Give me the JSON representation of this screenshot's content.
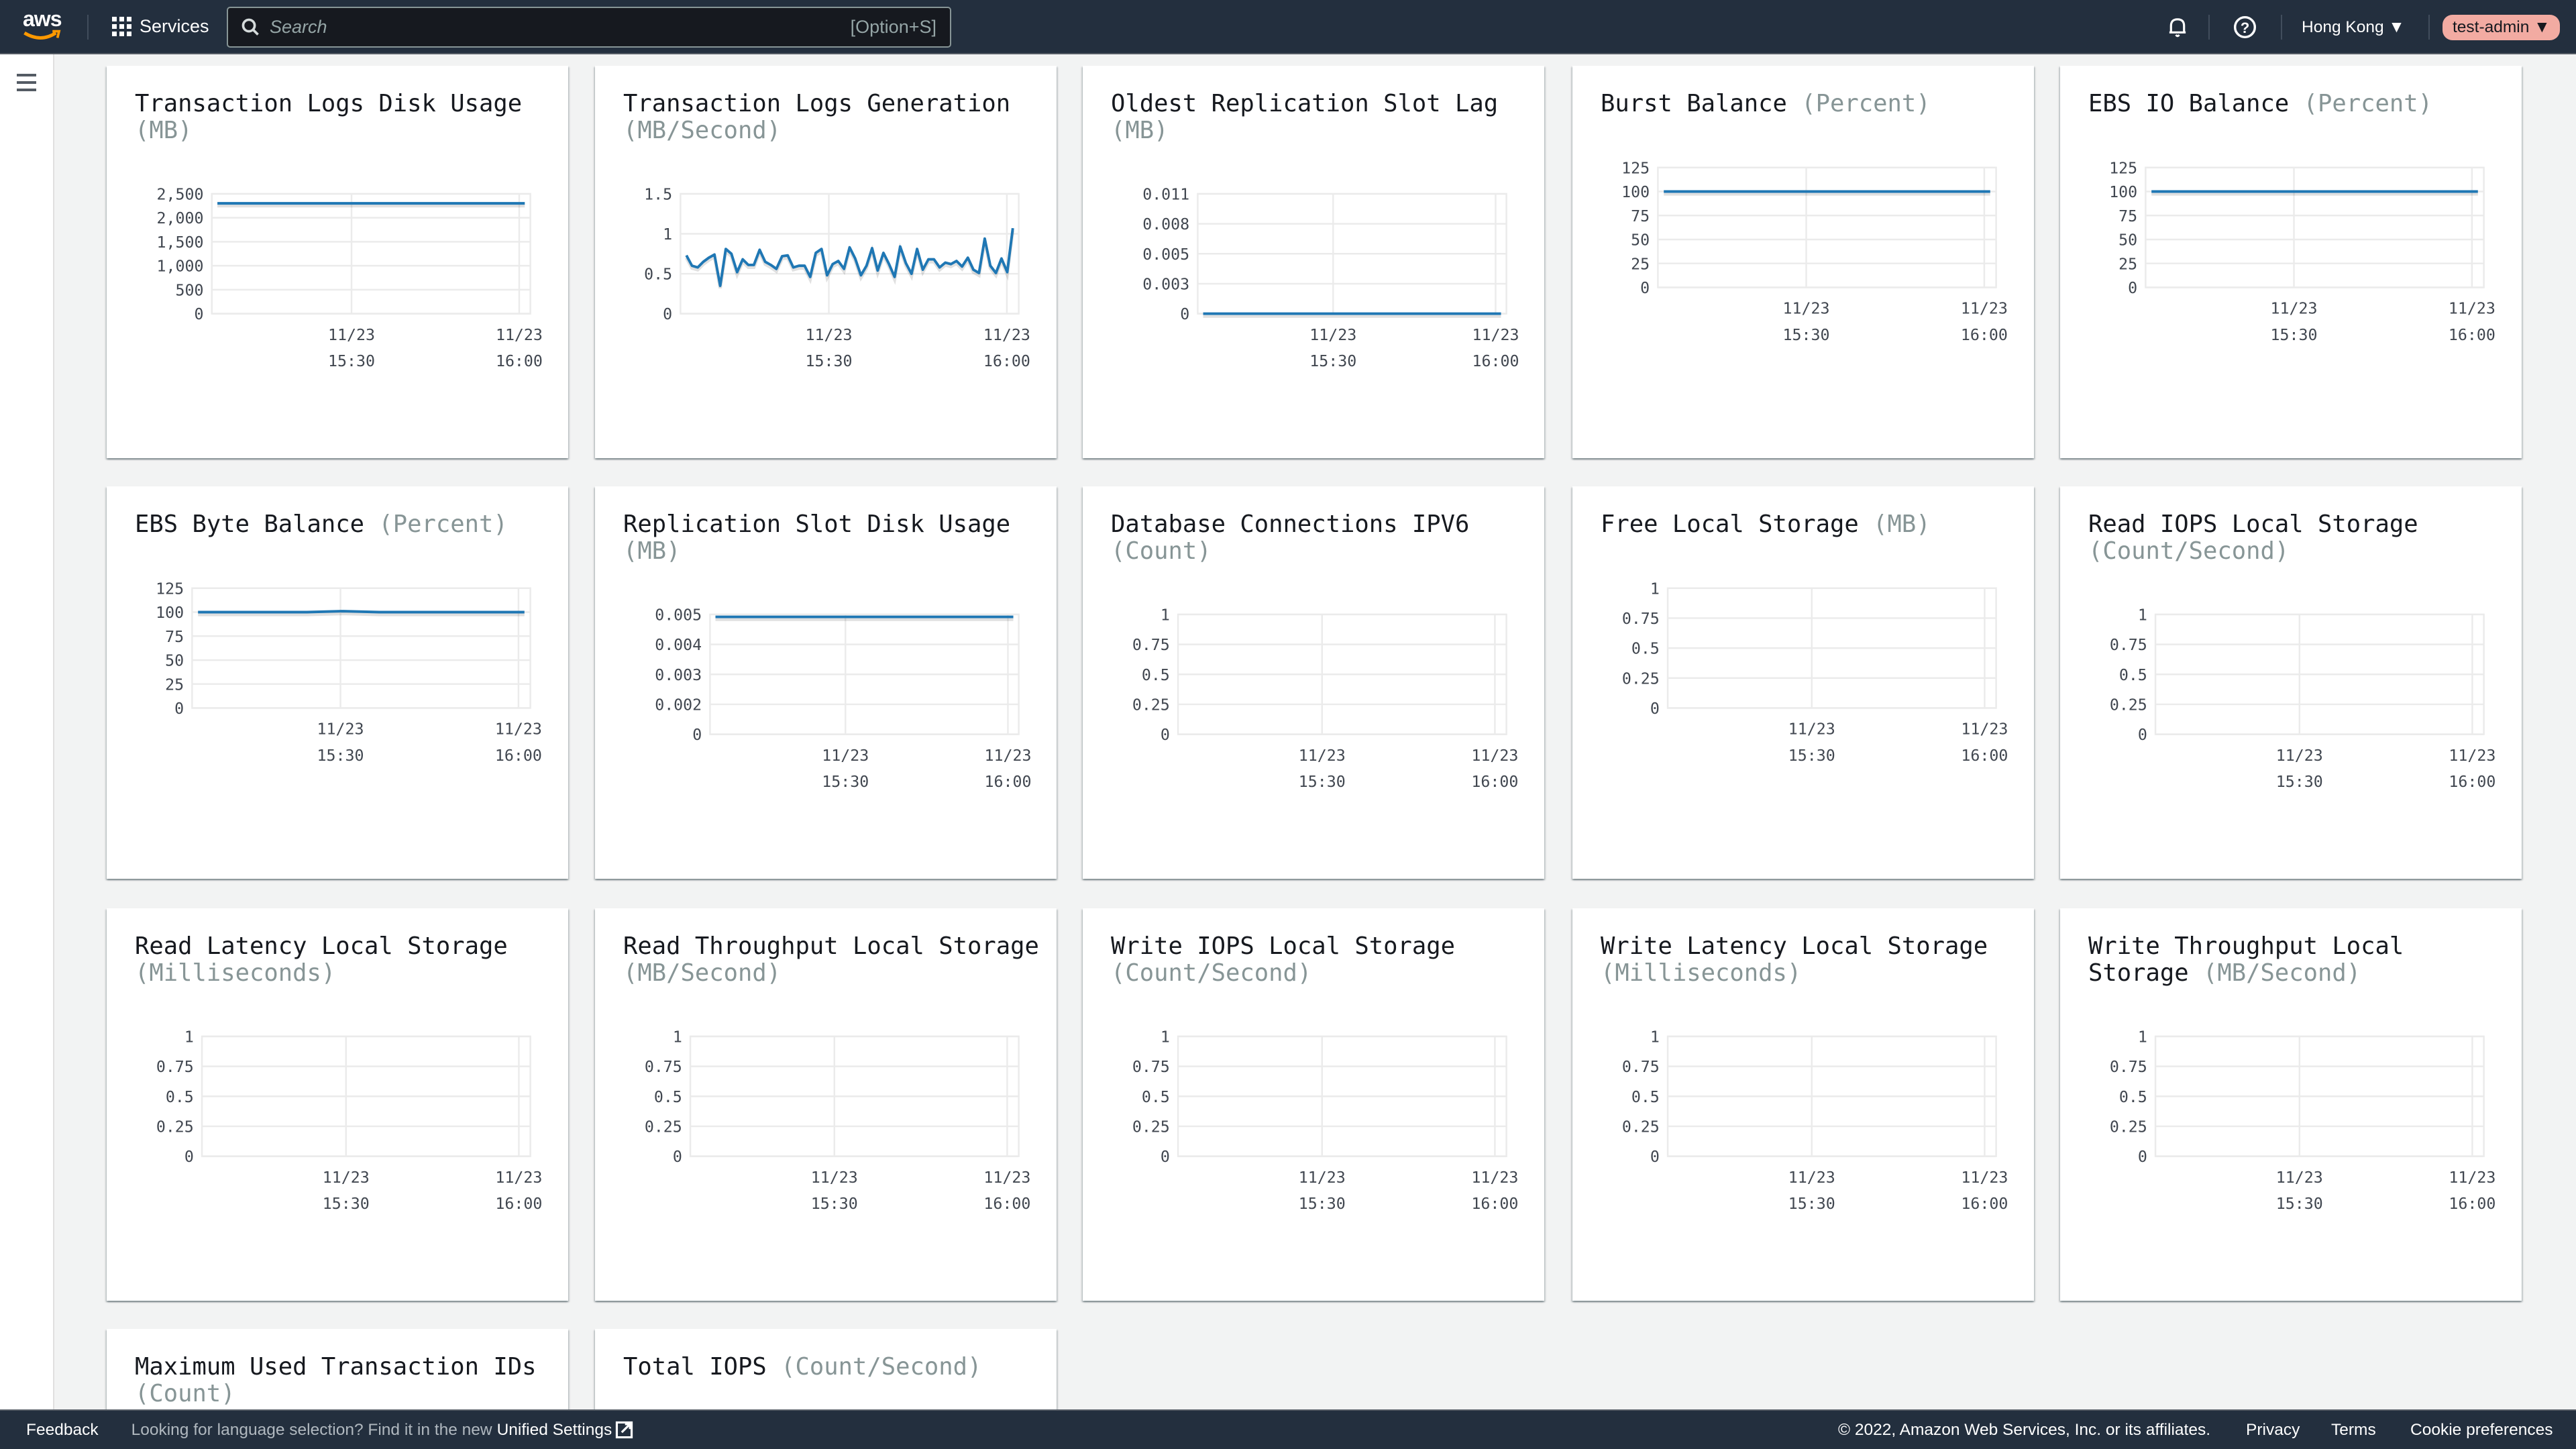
{
  "header": {
    "logo": "aws",
    "services": "Services",
    "search_placeholder": "Search",
    "search_shortcut": "[Option+S]",
    "region": "Hong Kong",
    "user": "test-admin",
    "icons": [
      "bell-icon",
      "help-icon",
      "grid-icon",
      "search-icon",
      "menu-icon"
    ]
  },
  "footer": {
    "feedback": "Feedback",
    "language_text": "Looking for language selection? Find it in the new",
    "unified_settings": "Unified Settings",
    "copyright": "© 2022, Amazon Web Services, Inc. or its affiliates.",
    "privacy": "Privacy",
    "terms": "Terms",
    "cookies": "Cookie preferences"
  },
  "colors": {
    "series": "#1f77b4",
    "header_bg": "#232f3e",
    "user_pill": "#f2aba2"
  },
  "chart_data": [
    {
      "type": "line",
      "title": "Transaction Logs Disk Usage",
      "unit": "(MB)",
      "yticks": [
        "0",
        "500",
        "1,000",
        "1,500",
        "2,000",
        "2,500"
      ],
      "ylim": [
        0,
        2500
      ],
      "xticks": [
        [
          "11/23",
          "15:30"
        ],
        [
          "11/23",
          "16:00"
        ]
      ],
      "xlim": [
        "15:05",
        "16:02"
      ],
      "x_start": "15:06",
      "x_end": "16:01",
      "values": [
        2300,
        2300
      ]
    },
    {
      "type": "line",
      "title": "Transaction Logs Generation",
      "unit": "(MB/Second)",
      "yticks": [
        "0",
        "0.5",
        "1",
        "1.5"
      ],
      "ylim": [
        0,
        1.5
      ],
      "xticks": [
        [
          "11/23",
          "15:30"
        ],
        [
          "11/23",
          "16:00"
        ]
      ],
      "xlim": [
        "15:05",
        "16:02"
      ],
      "x_start": "15:06",
      "x_end": "16:01",
      "values": [
        0.73,
        0.6,
        0.58,
        0.65,
        0.7,
        0.74,
        0.35,
        0.81,
        0.75,
        0.52,
        0.68,
        0.61,
        0.61,
        0.8,
        0.65,
        0.61,
        0.56,
        0.72,
        0.73,
        0.58,
        0.6,
        0.6,
        0.46,
        0.76,
        0.81,
        0.48,
        0.62,
        0.66,
        0.56,
        0.83,
        0.69,
        0.48,
        0.6,
        0.82,
        0.54,
        0.76,
        0.62,
        0.46,
        0.84,
        0.63,
        0.5,
        0.81,
        0.55,
        0.68,
        0.68,
        0.58,
        0.64,
        0.62,
        0.66,
        0.59,
        0.7,
        0.55,
        0.51,
        0.94,
        0.6,
        0.51,
        0.69,
        0.52,
        1.07
      ]
    },
    {
      "type": "line",
      "title": "Oldest Replication Slot Lag",
      "unit": "(MB)",
      "yticks": [
        "0",
        "0.003",
        "0.005",
        "0.008",
        "0.011"
      ],
      "ylim": [
        0,
        0.011
      ],
      "xticks": [
        [
          "11/23",
          "15:30"
        ],
        [
          "11/23",
          "16:00"
        ]
      ],
      "xlim": [
        "15:05",
        "16:02"
      ],
      "x_start": "15:06",
      "x_end": "16:01",
      "values": [
        0,
        0
      ]
    },
    {
      "type": "line",
      "title": "Burst Balance",
      "unit": "(Percent)",
      "yticks": [
        "0",
        "25",
        "50",
        "75",
        "100",
        "125"
      ],
      "ylim": [
        0,
        125
      ],
      "xticks": [
        [
          "11/23",
          "15:30"
        ],
        [
          "11/23",
          "16:00"
        ]
      ],
      "xlim": [
        "15:05",
        "16:02"
      ],
      "x_start": "15:06",
      "x_end": "16:01",
      "values": [
        100,
        100,
        100,
        100,
        100,
        100,
        100,
        100,
        100,
        100
      ]
    },
    {
      "type": "line",
      "title": "EBS IO Balance",
      "unit": "(Percent)",
      "yticks": [
        "0",
        "25",
        "50",
        "75",
        "100",
        "125"
      ],
      "ylim": [
        0,
        125
      ],
      "xticks": [
        [
          "11/23",
          "15:30"
        ],
        [
          "11/23",
          "16:00"
        ]
      ],
      "xlim": [
        "15:05",
        "16:02"
      ],
      "x_start": "15:06",
      "x_end": "16:01",
      "values": [
        100,
        100
      ]
    },
    {
      "type": "line",
      "title": "EBS Byte Balance",
      "unit": "(Percent)",
      "yticks": [
        "0",
        "25",
        "50",
        "75",
        "100",
        "125"
      ],
      "ylim": [
        0,
        125
      ],
      "xticks": [
        [
          "11/23",
          "15:30"
        ],
        [
          "11/23",
          "16:00"
        ]
      ],
      "xlim": [
        "15:05",
        "16:02"
      ],
      "x_start": "15:06",
      "x_end": "16:01",
      "values": [
        100,
        100,
        100,
        100,
        101,
        100,
        100,
        100,
        100,
        100
      ]
    },
    {
      "type": "line",
      "title": "Replication Slot Disk Usage",
      "unit": "(MB)",
      "yticks": [
        "0",
        "0.002",
        "0.003",
        "0.004",
        "0.005"
      ],
      "ylim": [
        0,
        0.005
      ],
      "xticks": [
        [
          "11/23",
          "15:30"
        ],
        [
          "11/23",
          "16:00"
        ]
      ],
      "xlim": [
        "15:05",
        "16:02"
      ],
      "x_start": "15:06",
      "x_end": "16:01",
      "values": [
        0.0049,
        0.0049
      ]
    },
    {
      "type": "line",
      "title": "Database Connections IPV6",
      "unit": "(Count)",
      "yticks": [
        "0",
        "0.25",
        "0.5",
        "0.75",
        "1"
      ],
      "ylim": [
        0,
        1
      ],
      "xticks": [
        [
          "11/23",
          "15:30"
        ],
        [
          "11/23",
          "16:00"
        ]
      ],
      "xlim": [
        "15:05",
        "16:02"
      ],
      "values": []
    },
    {
      "type": "line",
      "title": "Free Local Storage",
      "unit": "(MB)",
      "yticks": [
        "0",
        "0.25",
        "0.5",
        "0.75",
        "1"
      ],
      "ylim": [
        0,
        1
      ],
      "xticks": [
        [
          "11/23",
          "15:30"
        ],
        [
          "11/23",
          "16:00"
        ]
      ],
      "xlim": [
        "15:05",
        "16:02"
      ],
      "values": []
    },
    {
      "type": "line",
      "title": "Read IOPS Local Storage",
      "unit": "(Count/Second)",
      "yticks": [
        "0",
        "0.25",
        "0.5",
        "0.75",
        "1"
      ],
      "ylim": [
        0,
        1
      ],
      "xticks": [
        [
          "11/23",
          "15:30"
        ],
        [
          "11/23",
          "16:00"
        ]
      ],
      "xlim": [
        "15:05",
        "16:02"
      ],
      "values": []
    },
    {
      "type": "line",
      "title": "Read Latency Local Storage",
      "unit": "(Milliseconds)",
      "yticks": [
        "0",
        "0.25",
        "0.5",
        "0.75",
        "1"
      ],
      "ylim": [
        0,
        1
      ],
      "xticks": [
        [
          "11/23",
          "15:30"
        ],
        [
          "11/23",
          "16:00"
        ]
      ],
      "xlim": [
        "15:05",
        "16:02"
      ],
      "values": []
    },
    {
      "type": "line",
      "title": "Read Throughput Local Storage",
      "unit": "(MB/Second)",
      "yticks": [
        "0",
        "0.25",
        "0.5",
        "0.75",
        "1"
      ],
      "ylim": [
        0,
        1
      ],
      "xticks": [
        [
          "11/23",
          "15:30"
        ],
        [
          "11/23",
          "16:00"
        ]
      ],
      "xlim": [
        "15:05",
        "16:02"
      ],
      "values": []
    },
    {
      "type": "line",
      "title": "Write IOPS Local Storage",
      "unit": "(Count/Second)",
      "yticks": [
        "0",
        "0.25",
        "0.5",
        "0.75",
        "1"
      ],
      "ylim": [
        0,
        1
      ],
      "xticks": [
        [
          "11/23",
          "15:30"
        ],
        [
          "11/23",
          "16:00"
        ]
      ],
      "xlim": [
        "15:05",
        "16:02"
      ],
      "values": []
    },
    {
      "type": "line",
      "title": "Write Latency Local Storage",
      "unit": "(Milliseconds)",
      "yticks": [
        "0",
        "0.25",
        "0.5",
        "0.75",
        "1"
      ],
      "ylim": [
        0,
        1
      ],
      "xticks": [
        [
          "11/23",
          "15:30"
        ],
        [
          "11/23",
          "16:00"
        ]
      ],
      "xlim": [
        "15:05",
        "16:02"
      ],
      "values": []
    },
    {
      "type": "line",
      "title": "Write Throughput Local Storage",
      "unit": "(MB/Second)",
      "yticks": [
        "0",
        "0.25",
        "0.5",
        "0.75",
        "1"
      ],
      "ylim": [
        0,
        1
      ],
      "xticks": [
        [
          "11/23",
          "15:30"
        ],
        [
          "11/23",
          "16:00"
        ]
      ],
      "xlim": [
        "15:05",
        "16:02"
      ],
      "values": []
    },
    {
      "type": "line",
      "title": "Maximum Used Transaction IDs",
      "unit": "(Count)",
      "yticks": [],
      "xticks": [],
      "values": []
    },
    {
      "type": "line",
      "title": "Total IOPS",
      "unit": "(Count/Second)",
      "yticks": [],
      "xticks": [],
      "values": []
    }
  ]
}
